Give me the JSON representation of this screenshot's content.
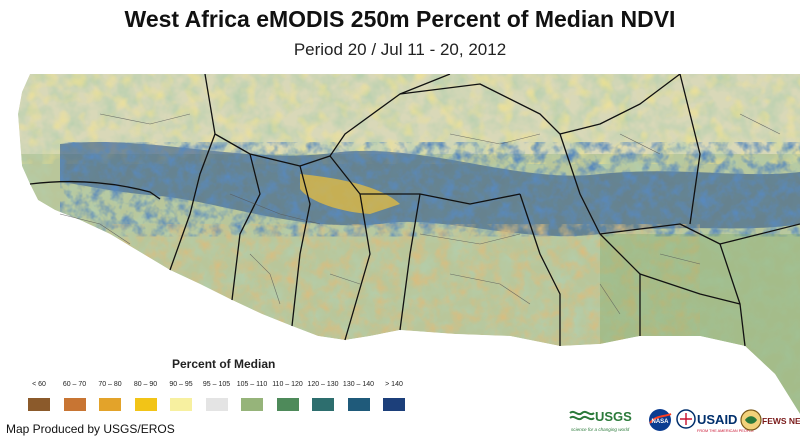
{
  "header": {
    "title": "West Africa eMODIS 250m Percent of Median NDVI",
    "subtitle": "Period 20 / Jul 11 - 20, 2012"
  },
  "legend": {
    "title": "Percent of Median",
    "classes": [
      {
        "label": "< 60",
        "color": "#8b5a2b"
      },
      {
        "label": "60 – 70",
        "color": "#c87533"
      },
      {
        "label": "70 – 80",
        "color": "#e3a32a"
      },
      {
        "label": "80 – 90",
        "color": "#f2c417"
      },
      {
        "label": "90 – 95",
        "color": "#f7f0a0"
      },
      {
        "label": "95 – 105",
        "color": "#e4e4e4"
      },
      {
        "label": "105 – 110",
        "color": "#96b47a"
      },
      {
        "label": "110 – 120",
        "color": "#4e8a5a"
      },
      {
        "label": "120 – 130",
        "color": "#2d6e6e"
      },
      {
        "label": "130 – 140",
        "color": "#1f5a7a"
      },
      {
        "label": "> 140",
        "color": "#1c3f7a"
      }
    ]
  },
  "map": {
    "region": "West Africa"
  },
  "footer": {
    "credit": "Map Produced by USGS/EROS",
    "logos": {
      "usgs": "USGS",
      "usgs_tagline": "science for a changing world",
      "nasa": "NASA",
      "usaid": "USAID",
      "usaid_tagline": "FROM THE AMERICAN PEOPLE",
      "fewsnet": "FEWS NET"
    }
  }
}
